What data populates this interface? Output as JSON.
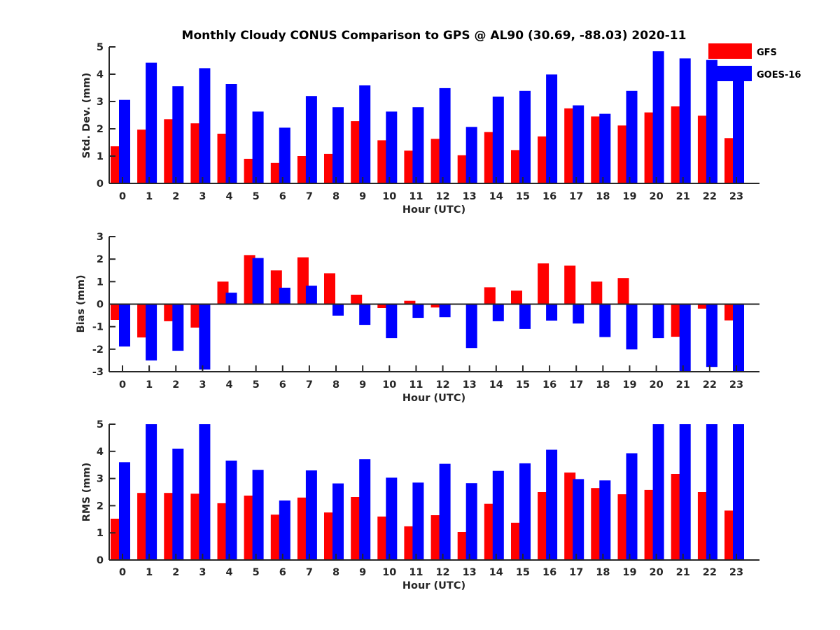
{
  "chart_data": [
    {
      "type": "bar",
      "title": "Monthly Cloudy CONUS Comparison to GPS @ AL90 (30.69, -88.03) 2020-11",
      "xlabel": "Hour (UTC)",
      "ylabel": "Std. Dev. (mm)",
      "ylim": [
        0,
        5
      ],
      "yticks": [
        "0",
        "1",
        "2",
        "3",
        "4",
        "5"
      ],
      "categories": [
        "0",
        "1",
        "2",
        "3",
        "4",
        "5",
        "6",
        "7",
        "8",
        "9",
        "10",
        "11",
        "12",
        "13",
        "14",
        "15",
        "16",
        "17",
        "18",
        "19",
        "20",
        "21",
        "22",
        "23"
      ],
      "series": [
        {
          "name": "GFS",
          "color": "#ff0000",
          "values": [
            1.36,
            1.97,
            2.35,
            2.2,
            1.82,
            0.9,
            0.75,
            1.0,
            1.08,
            2.28,
            1.58,
            1.2,
            1.63,
            1.03,
            1.88,
            1.22,
            1.72,
            2.75,
            2.45,
            2.12,
            2.6,
            2.82,
            2.48,
            1.66
          ]
        },
        {
          "name": "GOES-16",
          "color": "#0000ff",
          "values": [
            3.06,
            4.42,
            3.56,
            4.22,
            3.64,
            2.63,
            2.04,
            3.2,
            2.79,
            3.59,
            2.63,
            2.79,
            3.49,
            2.07,
            3.18,
            3.39,
            3.99,
            2.86,
            2.55,
            3.39,
            4.84,
            4.58,
            4.52,
            3.8
          ]
        }
      ],
      "legend": {
        "position": "top-right",
        "entries": [
          "GFS",
          "GOES-16"
        ]
      }
    },
    {
      "type": "bar",
      "xlabel": "Hour (UTC)",
      "ylabel": "Bias (mm)",
      "ylim": [
        -3,
        3
      ],
      "yticks": [
        "-3",
        "-2",
        "-1",
        "0",
        "1",
        "2",
        "3"
      ],
      "categories": [
        "0",
        "1",
        "2",
        "3",
        "4",
        "5",
        "6",
        "7",
        "8",
        "9",
        "10",
        "11",
        "12",
        "13",
        "14",
        "15",
        "16",
        "17",
        "18",
        "19",
        "20",
        "21",
        "22",
        "23"
      ],
      "series": [
        {
          "name": "GFS",
          "color": "#ff0000",
          "values": [
            -0.7,
            -1.48,
            -0.76,
            -1.04,
            1.0,
            2.18,
            1.5,
            2.08,
            1.37,
            0.42,
            -0.17,
            0.15,
            -0.15,
            0.03,
            0.75,
            0.6,
            1.81,
            1.71,
            1.0,
            1.16,
            -0.03,
            -1.45,
            -0.2,
            -0.72
          ]
        },
        {
          "name": "GOES-16",
          "color": "#0000ff",
          "values": [
            -1.88,
            -2.5,
            -2.07,
            -2.9,
            0.51,
            2.05,
            0.73,
            0.82,
            -0.51,
            -0.92,
            -1.51,
            -0.61,
            -0.58,
            -1.95,
            -0.76,
            -1.1,
            -0.73,
            -0.86,
            -1.46,
            -2.01,
            -1.51,
            -3.0,
            -2.79,
            -3.0
          ]
        }
      ]
    },
    {
      "type": "bar",
      "xlabel": "Hour (UTC)",
      "ylabel": "RMS (mm)",
      "ylim": [
        0,
        5
      ],
      "yticks": [
        "0",
        "1",
        "2",
        "3",
        "4",
        "5"
      ],
      "categories": [
        "0",
        "1",
        "2",
        "3",
        "4",
        "5",
        "6",
        "7",
        "8",
        "9",
        "10",
        "11",
        "12",
        "13",
        "14",
        "15",
        "16",
        "17",
        "18",
        "19",
        "20",
        "21",
        "22",
        "23"
      ],
      "series": [
        {
          "name": "GFS",
          "color": "#ff0000",
          "values": [
            1.52,
            2.47,
            2.47,
            2.44,
            2.09,
            2.37,
            1.67,
            2.3,
            1.75,
            2.32,
            1.6,
            1.24,
            1.65,
            1.03,
            2.07,
            1.37,
            2.5,
            3.22,
            2.65,
            2.42,
            2.58,
            3.17,
            2.5,
            1.82
          ]
        },
        {
          "name": "GOES-16",
          "color": "#0000ff",
          "values": [
            3.6,
            5.0,
            4.1,
            5.0,
            3.66,
            3.32,
            2.19,
            3.3,
            2.82,
            3.71,
            3.03,
            2.85,
            3.54,
            2.83,
            3.28,
            3.56,
            4.06,
            2.98,
            2.93,
            3.93,
            5.0,
            5.0,
            5.0,
            5.0
          ]
        }
      ]
    }
  ]
}
